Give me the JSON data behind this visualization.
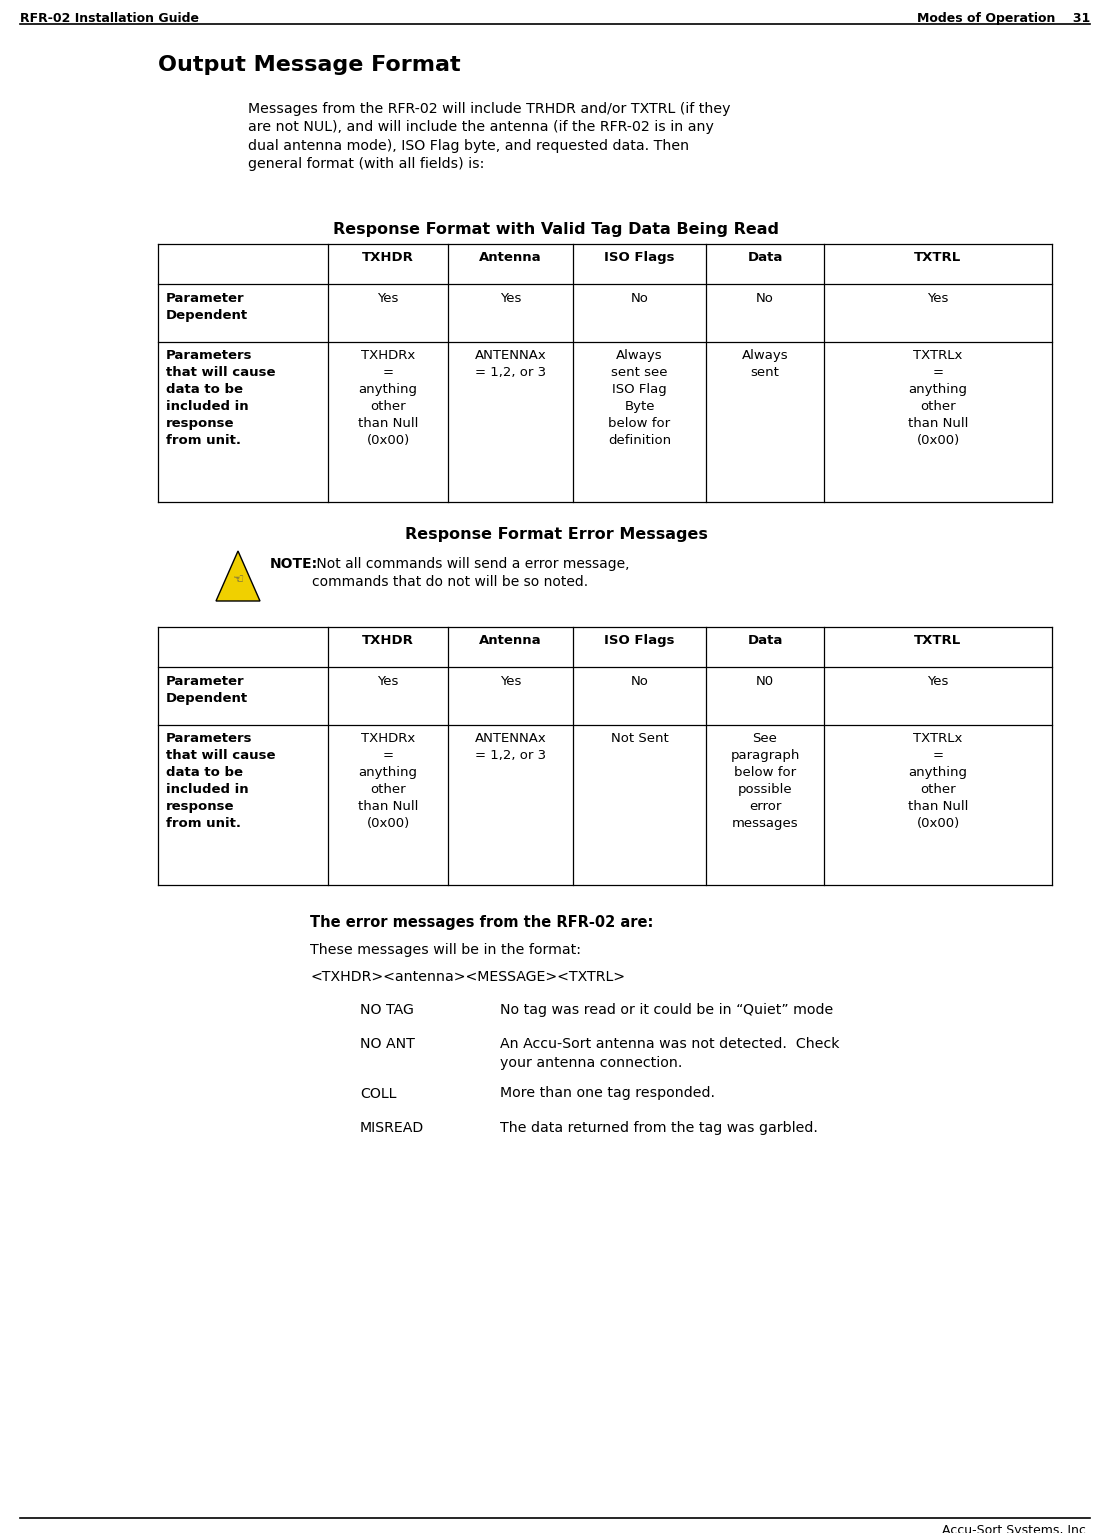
{
  "header_left": "RFR-02 Installation Guide",
  "header_right": "Modes of Operation    31",
  "footer_right": "Accu-Sort Systems, Inc.",
  "page_title": "Output Message Format",
  "intro_text": "Messages from the RFR-02 will include TRHDR and/or TXTRL (if they\nare not NUL), and will include the antenna (if the RFR-02 is in any\ndual antenna mode), ISO Flag byte, and requested data. Then\ngeneral format (with all fields) is:",
  "table1_title": "Response Format with Valid Tag Data Being Read",
  "table1_headers": [
    "",
    "TXHDR",
    "Antenna",
    "ISO Flags",
    "Data",
    "TXTRL"
  ],
  "table1_row1_label": "Parameter\nDependent",
  "table1_row1_vals": [
    "Yes",
    "Yes",
    "No",
    "No",
    "Yes"
  ],
  "table1_row2_label": "Parameters\nthat will cause\ndata to be\nincluded in\nresponse\nfrom unit.",
  "table1_row2_vals": [
    "TXHDRx\n=\nanything\nother\nthan Null\n(0x00)",
    "ANTENNAx\n= 1,2, or 3",
    "Always\nsent see\nISO Flag\nByte\nbelow for\ndefinition",
    "Always\nsent",
    "TXTRLx\n=\nanything\nother\nthan Null\n(0x00)"
  ],
  "table2_title": "Response Format Error Messages",
  "note_bold": "NOTE:",
  "note_rest": " Not all commands will send a error message,\ncommands that do not will be so noted.",
  "table2_headers": [
    "",
    "TXHDR",
    "Antenna",
    "ISO Flags",
    "Data",
    "TXTRL"
  ],
  "table2_row1_label": "Parameter\nDependent",
  "table2_row1_vals": [
    "Yes",
    "Yes",
    "No",
    "N0",
    "Yes"
  ],
  "table2_row2_label": "Parameters\nthat will cause\ndata to be\nincluded in\nresponse\nfrom unit.",
  "table2_row2_vals": [
    "TXHDRx\n=\nanything\nother\nthan Null\n(0x00)",
    "ANTENNAx\n= 1,2, or 3",
    "Not Sent",
    "See\nparagraph\nbelow for\npossible\nerror\nmessages",
    "TXTRLx\n=\nanything\nother\nthan Null\n(0x00)"
  ],
  "error_title": "The error messages from the RFR-02 are:",
  "error_format_intro": "These messages will be in the format:",
  "error_format": "<TXHDR><antenna><MESSAGE><TXTRL>",
  "error_items": [
    {
      "code": "NO TAG",
      "desc": "No tag was read or it could be in “Quiet” mode"
    },
    {
      "code": "NO ANT",
      "desc": "An Accu-Sort antenna was not detected.  Check\nyour antenna connection."
    },
    {
      "code": "COLL",
      "desc": "More than one tag responded."
    },
    {
      "code": "MISREAD",
      "desc": "The data returned from the tag was garbled."
    }
  ]
}
